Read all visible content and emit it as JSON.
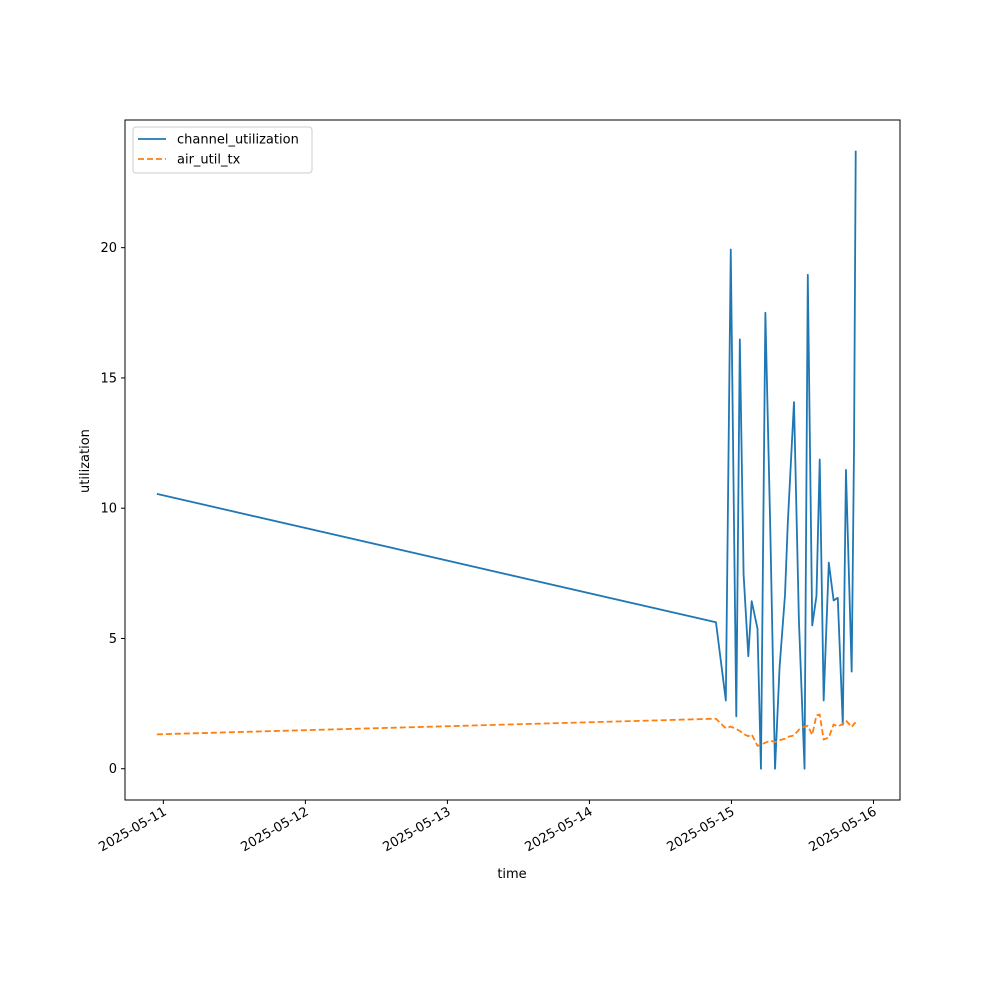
{
  "chart_data": {
    "type": "line",
    "title": "",
    "xlabel": "time",
    "ylabel": "utilization",
    "x_ticks": [
      "2025-05-11",
      "2025-05-12",
      "2025-05-13",
      "2025-05-14",
      "2025-05-15",
      "2025-05-16"
    ],
    "y_ticks": [
      "0",
      "5",
      "10",
      "15",
      "20"
    ],
    "xlim": [
      "2025-05-10 17:31",
      "2025-05-16 04:29"
    ],
    "ylim": [
      -1.2,
      24.9
    ],
    "grid": false,
    "legend_position": "top-left",
    "series": [
      {
        "name": "channel_utilization",
        "color": "#1f77b4",
        "style": "solid",
        "points": [
          [
            "2025-05-10 22:54",
            10.55
          ],
          [
            "2025-05-14 21:23",
            5.62
          ],
          [
            "2025-05-14 23:03",
            2.62
          ],
          [
            "2025-05-14 23:53",
            19.93
          ],
          [
            "2025-05-15 00:49",
            2.01
          ],
          [
            "2025-05-15 01:25",
            16.48
          ],
          [
            "2025-05-15 02:03",
            7.47
          ],
          [
            "2025-05-15 02:51",
            4.32
          ],
          [
            "2025-05-15 03:25",
            6.43
          ],
          [
            "2025-05-15 04:24",
            5.38
          ],
          [
            "2025-05-15 04:59",
            0.0
          ],
          [
            "2025-05-15 05:44",
            17.5
          ],
          [
            "2025-05-15 06:34",
            9.15
          ],
          [
            "2025-05-15 07:22",
            0.0
          ],
          [
            "2025-05-15 08:08",
            3.9
          ],
          [
            "2025-05-15 09:03",
            6.67
          ],
          [
            "2025-05-15 09:31",
            9.4
          ],
          [
            "2025-05-15 10:34",
            14.07
          ],
          [
            "2025-05-15 11:24",
            5.7
          ],
          [
            "2025-05-15 12:21",
            0.0
          ],
          [
            "2025-05-15 12:54",
            18.96
          ],
          [
            "2025-05-15 13:39",
            5.5
          ],
          [
            "2025-05-15 14:22",
            6.63
          ],
          [
            "2025-05-15 14:55",
            11.87
          ],
          [
            "2025-05-15 15:35",
            2.62
          ],
          [
            "2025-05-15 16:27",
            7.91
          ],
          [
            "2025-05-15 17:16",
            6.46
          ],
          [
            "2025-05-15 17:58",
            6.56
          ],
          [
            "2025-05-15 18:49",
            1.69
          ],
          [
            "2025-05-15 19:21",
            11.47
          ],
          [
            "2025-05-15 20:19",
            3.73
          ],
          [
            "2025-05-15 20:43",
            12.39
          ],
          [
            "2025-05-15 21:00",
            23.72
          ]
        ]
      },
      {
        "name": "air_util_tx",
        "color": "#ff7f0e",
        "style": "dashed",
        "points": [
          [
            "2025-05-10 22:54",
            1.32
          ],
          [
            "2025-05-14 21:23",
            1.92
          ],
          [
            "2025-05-14 23:03",
            1.55
          ],
          [
            "2025-05-14 23:53",
            1.62
          ],
          [
            "2025-05-15 00:49",
            1.52
          ],
          [
            "2025-05-15 01:25",
            1.45
          ],
          [
            "2025-05-15 02:03",
            1.33
          ],
          [
            "2025-05-15 02:51",
            1.25
          ],
          [
            "2025-05-15 03:25",
            1.32
          ],
          [
            "2025-05-15 04:24",
            0.88
          ],
          [
            "2025-05-15 04:59",
            0.92
          ],
          [
            "2025-05-15 05:44",
            1.0
          ],
          [
            "2025-05-15 06:34",
            1.08
          ],
          [
            "2025-05-15 07:22",
            1.02
          ],
          [
            "2025-05-15 08:08",
            1.1
          ],
          [
            "2025-05-15 09:03",
            1.15
          ],
          [
            "2025-05-15 09:31",
            1.22
          ],
          [
            "2025-05-15 10:34",
            1.28
          ],
          [
            "2025-05-15 11:24",
            1.5
          ],
          [
            "2025-05-15 12:21",
            1.62
          ],
          [
            "2025-05-15 12:54",
            1.65
          ],
          [
            "2025-05-15 13:39",
            1.3
          ],
          [
            "2025-05-15 14:22",
            2.05
          ],
          [
            "2025-05-15 14:55",
            2.08
          ],
          [
            "2025-05-15 15:35",
            1.12
          ],
          [
            "2025-05-15 16:27",
            1.2
          ],
          [
            "2025-05-15 17:16",
            1.7
          ],
          [
            "2025-05-15 17:58",
            1.62
          ],
          [
            "2025-05-15 18:49",
            1.72
          ],
          [
            "2025-05-15 19:21",
            1.85
          ],
          [
            "2025-05-15 20:19",
            1.6
          ],
          [
            "2025-05-15 20:43",
            1.72
          ],
          [
            "2025-05-15 21:00",
            1.78
          ]
        ]
      }
    ]
  }
}
